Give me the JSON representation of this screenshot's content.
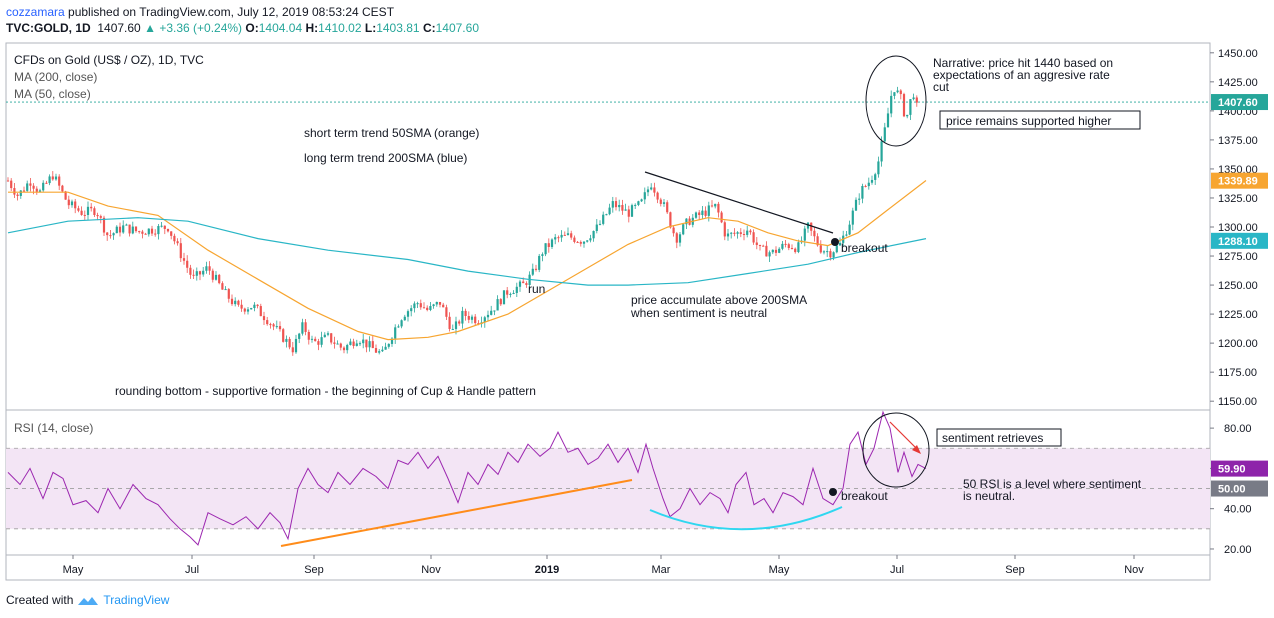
{
  "header": {
    "author": "cozzamara",
    "published_text": "published on TradingView.com, July 12, 2019 08:53:24 CEST",
    "symbol": "TVC:GOLD, 1D",
    "last": "1407.60",
    "change": "+3.36 (+0.24%)",
    "o_label": "O:",
    "o": "1404.04",
    "h_label": "H:",
    "h": "1410.02",
    "l_label": "L:",
    "l": "1403.81",
    "c_label": "C:",
    "c": "1407.60"
  },
  "footer": {
    "created_with": "Created with",
    "brand": "TradingView"
  },
  "colors": {
    "up": "#26a69a",
    "down": "#ef5350",
    "ma50": "#f7a530",
    "ma200": "#29b6c6",
    "rsi": "#9c27b0",
    "rsi_band": "#f3e5f5",
    "rsi_arc": "#2fd7f0",
    "rsi_trend": "#ff8c1a",
    "price_tag": "#26a69a",
    "ma50_tag": "#f7a530",
    "ma200_tag": "#29b6c6",
    "rsi_tag": "#8e24aa",
    "rsi50_tag": "#787b86"
  },
  "chart_data": [
    {
      "type": "candlestick",
      "title": "CFDs on Gold (US$ / OZ), 1D, TVC",
      "indicators": [
        "MA (200, close)",
        "MA (50, close)"
      ],
      "x_ticks": [
        "May",
        "Jul",
        "Sep",
        "Nov",
        "2019",
        "Mar",
        "May",
        "Jul",
        "Sep",
        "Nov"
      ],
      "y_ticks": [
        1150,
        1175,
        1200,
        1225,
        1250,
        1275,
        1300,
        1325,
        1350,
        1375,
        1400,
        1425,
        1450
      ],
      "ylim": [
        1145,
        1455
      ],
      "axis_labels": {
        "price": "1407.60",
        "ma50": "1339.89",
        "ma200": "1288.10"
      },
      "close_path": [
        [
          0,
          1340
        ],
        [
          10,
          1327
        ],
        [
          22,
          1340
        ],
        [
          32,
          1330
        ],
        [
          45,
          1345
        ],
        [
          60,
          1320
        ],
        [
          75,
          1312
        ],
        [
          88,
          1315
        ],
        [
          100,
          1292
        ],
        [
          115,
          1300
        ],
        [
          130,
          1296
        ],
        [
          145,
          1298
        ],
        [
          160,
          1300
        ],
        [
          172,
          1278
        ],
        [
          185,
          1255
        ],
        [
          200,
          1265
        ],
        [
          215,
          1245
        ],
        [
          230,
          1230
        ],
        [
          245,
          1232
        ],
        [
          260,
          1220
        ],
        [
          275,
          1205
        ],
        [
          285,
          1195
        ],
        [
          295,
          1215
        ],
        [
          305,
          1200
        ],
        [
          320,
          1205
        ],
        [
          335,
          1195
        ],
        [
          350,
          1205
        ],
        [
          365,
          1195
        ],
        [
          375,
          1190
        ],
        [
          385,
          1210
        ],
        [
          395,
          1225
        ],
        [
          410,
          1235
        ],
        [
          420,
          1228
        ],
        [
          432,
          1235
        ],
        [
          445,
          1210
        ],
        [
          455,
          1225
        ],
        [
          470,
          1220
        ],
        [
          485,
          1230
        ],
        [
          500,
          1245
        ],
        [
          515,
          1250
        ],
        [
          525,
          1260
        ],
        [
          535,
          1280
        ],
        [
          548,
          1290
        ],
        [
          560,
          1292
        ],
        [
          575,
          1288
        ],
        [
          590,
          1300
        ],
        [
          605,
          1320
        ],
        [
          620,
          1312
        ],
        [
          633,
          1320
        ],
        [
          643,
          1338
        ],
        [
          655,
          1320
        ],
        [
          668,
          1290
        ],
        [
          680,
          1305
        ],
        [
          695,
          1312
        ],
        [
          708,
          1318
        ],
        [
          718,
          1292
        ],
        [
          730,
          1295
        ],
        [
          740,
          1298
        ],
        [
          752,
          1280
        ],
        [
          765,
          1278
        ],
        [
          778,
          1285
        ],
        [
          790,
          1282
        ],
        [
          800,
          1300
        ],
        [
          812,
          1282
        ],
        [
          822,
          1278
        ],
        [
          832,
          1285
        ],
        [
          842,
          1305
        ],
        [
          852,
          1330
        ],
        [
          862,
          1340
        ],
        [
          870,
          1355
        ],
        [
          878,
          1388
        ],
        [
          885,
          1422
        ],
        [
          893,
          1410
        ],
        [
          898,
          1392
        ],
        [
          905,
          1418
        ],
        [
          910,
          1398
        ],
        [
          915,
          1410
        ],
        [
          920,
          1407.6
        ]
      ],
      "ma50_path": [
        [
          0,
          1330
        ],
        [
          60,
          1330
        ],
        [
          100,
          1318
        ],
        [
          150,
          1310
        ],
        [
          200,
          1280
        ],
        [
          250,
          1255
        ],
        [
          300,
          1230
        ],
        [
          350,
          1210
        ],
        [
          380,
          1203
        ],
        [
          420,
          1205
        ],
        [
          450,
          1210
        ],
        [
          500,
          1225
        ],
        [
          540,
          1245
        ],
        [
          580,
          1265
        ],
        [
          620,
          1285
        ],
        [
          660,
          1300
        ],
        [
          700,
          1308
        ],
        [
          730,
          1305
        ],
        [
          760,
          1295
        ],
        [
          790,
          1288
        ],
        [
          820,
          1284
        ],
        [
          850,
          1295
        ],
        [
          880,
          1315
        ],
        [
          918,
          1340
        ]
      ],
      "ma200_path": [
        [
          0,
          1295
        ],
        [
          60,
          1305
        ],
        [
          130,
          1308
        ],
        [
          180,
          1305
        ],
        [
          250,
          1290
        ],
        [
          320,
          1280
        ],
        [
          400,
          1272
        ],
        [
          460,
          1262
        ],
        [
          520,
          1255
        ],
        [
          580,
          1250
        ],
        [
          620,
          1250
        ],
        [
          680,
          1252
        ],
        [
          740,
          1260
        ],
        [
          800,
          1268
        ],
        [
          850,
          1278
        ],
        [
          918,
          1290
        ]
      ]
    },
    {
      "type": "line",
      "title": "RSI (14, close)",
      "y_ticks": [
        20,
        40,
        60,
        80
      ],
      "ylim": [
        18,
        88
      ],
      "band": [
        30,
        70
      ],
      "levels": {
        "rsi_value": "59.90",
        "neutral": "50.00"
      },
      "path": [
        [
          0,
          58
        ],
        [
          12,
          52
        ],
        [
          22,
          60
        ],
        [
          35,
          45
        ],
        [
          45,
          58
        ],
        [
          55,
          55
        ],
        [
          65,
          42
        ],
        [
          78,
          44
        ],
        [
          90,
          38
        ],
        [
          100,
          50
        ],
        [
          112,
          40
        ],
        [
          125,
          52
        ],
        [
          138,
          45
        ],
        [
          150,
          42
        ],
        [
          162,
          35
        ],
        [
          172,
          30
        ],
        [
          182,
          26
        ],
        [
          190,
          22
        ],
        [
          200,
          38
        ],
        [
          212,
          35
        ],
        [
          225,
          32
        ],
        [
          238,
          36
        ],
        [
          250,
          30
        ],
        [
          262,
          38
        ],
        [
          272,
          33
        ],
        [
          280,
          25
        ],
        [
          290,
          50
        ],
        [
          300,
          60
        ],
        [
          310,
          52
        ],
        [
          320,
          48
        ],
        [
          330,
          58
        ],
        [
          342,
          52
        ],
        [
          355,
          60
        ],
        [
          368,
          56
        ],
        [
          380,
          50
        ],
        [
          390,
          64
        ],
        [
          400,
          62
        ],
        [
          410,
          68
        ],
        [
          420,
          60
        ],
        [
          430,
          66
        ],
        [
          440,
          55
        ],
        [
          450,
          43
        ],
        [
          460,
          58
        ],
        [
          470,
          52
        ],
        [
          480,
          62
        ],
        [
          490,
          57
        ],
        [
          500,
          68
        ],
        [
          510,
          63
        ],
        [
          520,
          72
        ],
        [
          532,
          66
        ],
        [
          542,
          70
        ],
        [
          550,
          78
        ],
        [
          560,
          68
        ],
        [
          570,
          70
        ],
        [
          580,
          62
        ],
        [
          590,
          65
        ],
        [
          600,
          72
        ],
        [
          610,
          63
        ],
        [
          620,
          70
        ],
        [
          630,
          58
        ],
        [
          638,
          72
        ],
        [
          645,
          60
        ],
        [
          655,
          45
        ],
        [
          662,
          36
        ],
        [
          672,
          40
        ],
        [
          682,
          50
        ],
        [
          692,
          42
        ],
        [
          702,
          48
        ],
        [
          712,
          45
        ],
        [
          720,
          38
        ],
        [
          728,
          52
        ],
        [
          738,
          58
        ],
        [
          746,
          42
        ],
        [
          756,
          45
        ],
        [
          765,
          38
        ],
        [
          775,
          48
        ],
        [
          785,
          46
        ],
        [
          795,
          42
        ],
        [
          805,
          60
        ],
        [
          815,
          45
        ],
        [
          825,
          42
        ],
        [
          835,
          50
        ],
        [
          842,
          72
        ],
        [
          850,
          78
        ],
        [
          858,
          62
        ],
        [
          866,
          70
        ],
        [
          875,
          88
        ],
        [
          882,
          80
        ],
        [
          890,
          58
        ],
        [
          896,
          68
        ],
        [
          904,
          56
        ],
        [
          910,
          62
        ],
        [
          918,
          59.9
        ]
      ]
    }
  ],
  "annotations": {
    "trend_50": "short term trend 50SMA (orange)",
    "trend_200": "long term trend 200SMA (blue)",
    "narrative": [
      "Narrative: price hit 1440 based on",
      "expectations of an aggresive rate",
      "cut"
    ],
    "supported": "price remains supported higher",
    "breakout": "breakout",
    "run": "run",
    "accumulate": [
      "price accumulate above 200SMA",
      "when sentiment is neutral"
    ],
    "rounding": "rounding bottom - supportive formation - the beginning of Cup & Handle pattern",
    "sentiment_retrieves": "sentiment retrieves",
    "rsi_neutral": [
      "50 RSI is a level where sentiment",
      "is neutral."
    ]
  }
}
